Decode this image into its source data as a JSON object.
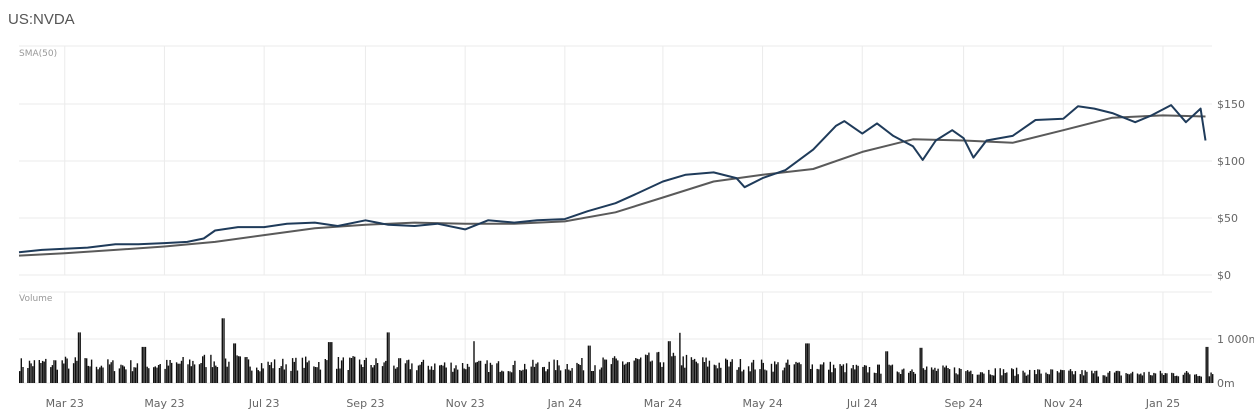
{
  "header": {
    "ticker": "US:NVDA"
  },
  "chart_data": [
    {
      "type": "line",
      "panel": "price",
      "indicator_label": "SMA(50)",
      "ylim": [
        0,
        150
      ],
      "yticks": [
        0,
        50,
        100,
        150
      ],
      "ytick_labels": [
        "$0",
        "$50",
        "$100",
        "$150"
      ],
      "y_axis_position": "right",
      "grid": true,
      "x_range": [
        "2023-02-01",
        "2025-01-31"
      ],
      "series": [
        {
          "color": "#1f3b5a",
          "points": [
            [
              "2023-02-01",
              20
            ],
            [
              "2023-02-15",
              22
            ],
            [
              "2023-03-01",
              23
            ],
            [
              "2023-03-15",
              24
            ],
            [
              "2023-04-01",
              27
            ],
            [
              "2023-04-15",
              27
            ],
            [
              "2023-05-01",
              28
            ],
            [
              "2023-05-15",
              29
            ],
            [
              "2023-05-25",
              32
            ],
            [
              "2023-06-01",
              39
            ],
            [
              "2023-06-15",
              42
            ],
            [
              "2023-07-01",
              42
            ],
            [
              "2023-07-15",
              45
            ],
            [
              "2023-08-01",
              46
            ],
            [
              "2023-08-15",
              43
            ],
            [
              "2023-09-01",
              48
            ],
            [
              "2023-09-15",
              44
            ],
            [
              "2023-10-01",
              43
            ],
            [
              "2023-10-15",
              45
            ],
            [
              "2023-11-01",
              40
            ],
            [
              "2023-11-15",
              48
            ],
            [
              "2023-12-01",
              46
            ],
            [
              "2023-12-15",
              48
            ],
            [
              "2024-01-01",
              49
            ],
            [
              "2024-01-15",
              56
            ],
            [
              "2024-02-01",
              63
            ],
            [
              "2024-02-15",
              72
            ],
            [
              "2024-03-01",
              82
            ],
            [
              "2024-03-15",
              88
            ],
            [
              "2024-04-01",
              90
            ],
            [
              "2024-04-15",
              85
            ],
            [
              "2024-04-20",
              77
            ],
            [
              "2024-05-01",
              85
            ],
            [
              "2024-05-15",
              92
            ],
            [
              "2024-06-01",
              110
            ],
            [
              "2024-06-15",
              131
            ],
            [
              "2024-06-20",
              135
            ],
            [
              "2024-07-01",
              124
            ],
            [
              "2024-07-10",
              133
            ],
            [
              "2024-07-20",
              122
            ],
            [
              "2024-08-01",
              113
            ],
            [
              "2024-08-07",
              101
            ],
            [
              "2024-08-15",
              118
            ],
            [
              "2024-08-25",
              127
            ],
            [
              "2024-09-01",
              120
            ],
            [
              "2024-09-07",
              103
            ],
            [
              "2024-09-15",
              118
            ],
            [
              "2024-10-01",
              122
            ],
            [
              "2024-10-15",
              136
            ],
            [
              "2024-11-01",
              137
            ],
            [
              "2024-11-10",
              148
            ],
            [
              "2024-11-20",
              146
            ],
            [
              "2024-12-01",
              142
            ],
            [
              "2024-12-15",
              134
            ],
            [
              "2024-12-25",
              140
            ],
            [
              "2025-01-06",
              149
            ],
            [
              "2025-01-15",
              134
            ],
            [
              "2025-01-24",
              146
            ],
            [
              "2025-01-27",
              118
            ]
          ]
        },
        {
          "color": "#5a5a5a",
          "points": [
            [
              "2023-02-01",
              17
            ],
            [
              "2023-03-01",
              19
            ],
            [
              "2023-04-01",
              22
            ],
            [
              "2023-05-01",
              25
            ],
            [
              "2023-06-01",
              29
            ],
            [
              "2023-07-01",
              35
            ],
            [
              "2023-08-01",
              41
            ],
            [
              "2023-09-01",
              44
            ],
            [
              "2023-10-01",
              46
            ],
            [
              "2023-11-01",
              45
            ],
            [
              "2023-12-01",
              45
            ],
            [
              "2024-01-01",
              47
            ],
            [
              "2024-02-01",
              55
            ],
            [
              "2024-03-01",
              68
            ],
            [
              "2024-04-01",
              82
            ],
            [
              "2024-05-01",
              88
            ],
            [
              "2024-06-01",
              93
            ],
            [
              "2024-07-01",
              108
            ],
            [
              "2024-08-01",
              119
            ],
            [
              "2024-09-01",
              118
            ],
            [
              "2024-10-01",
              116
            ],
            [
              "2024-11-01",
              127
            ],
            [
              "2024-12-01",
              138
            ],
            [
              "2025-01-01",
              140
            ],
            [
              "2025-01-27",
              139
            ]
          ]
        }
      ]
    },
    {
      "type": "bar",
      "panel": "volume",
      "indicator_label": "Volume",
      "unit": "m",
      "ylim": [
        0,
        1000
      ],
      "yticks": [
        0,
        1000
      ],
      "ytick_labels": [
        "0m",
        "1 000m"
      ],
      "y_axis_position": "right",
      "volume_profile": [
        [
          "2023-02-01",
          450
        ],
        [
          "2023-03-01",
          480
        ],
        [
          "2023-04-01",
          420
        ],
        [
          "2023-05-01",
          420
        ],
        [
          "2023-06-01",
          560
        ],
        [
          "2023-07-01",
          430
        ],
        [
          "2023-08-01",
          480
        ],
        [
          "2023-09-01",
          470
        ],
        [
          "2023-10-01",
          420
        ],
        [
          "2023-11-01",
          410
        ],
        [
          "2023-12-01",
          400
        ],
        [
          "2024-01-01",
          420
        ],
        [
          "2024-02-01",
          480
        ],
        [
          "2024-03-01",
          560
        ],
        [
          "2024-04-01",
          460
        ],
        [
          "2024-05-01",
          420
        ],
        [
          "2024-06-01",
          420
        ],
        [
          "2024-07-01",
          330
        ],
        [
          "2024-08-01",
          330
        ],
        [
          "2024-09-01",
          300
        ],
        [
          "2024-10-01",
          270
        ],
        [
          "2024-11-01",
          250
        ],
        [
          "2024-12-01",
          230
        ],
        [
          "2025-01-01",
          220
        ],
        [
          "2025-01-31",
          230
        ]
      ],
      "volume_spikes": [
        [
          "2023-03-10",
          1150
        ],
        [
          "2023-04-18",
          820
        ],
        [
          "2023-06-05",
          1470
        ],
        [
          "2023-06-12",
          900
        ],
        [
          "2023-08-10",
          930
        ],
        [
          "2023-09-15",
          1150
        ],
        [
          "2023-11-05",
          950
        ],
        [
          "2024-01-15",
          850
        ],
        [
          "2024-03-10",
          1140
        ],
        [
          "2024-03-04",
          950
        ],
        [
          "2024-05-28",
          900
        ],
        [
          "2024-07-15",
          720
        ],
        [
          "2024-08-05",
          800
        ],
        [
          "2025-01-27",
          820
        ]
      ]
    }
  ],
  "x_axis": {
    "ticks": [
      {
        "label": "Mar 23",
        "date": "2023-03-01"
      },
      {
        "label": "May 23",
        "date": "2023-05-01"
      },
      {
        "label": "Jul 23",
        "date": "2023-07-01"
      },
      {
        "label": "Sep 23",
        "date": "2023-09-01"
      },
      {
        "label": "Nov 23",
        "date": "2023-11-01"
      },
      {
        "label": "Jan 24",
        "date": "2024-01-01"
      },
      {
        "label": "Mar 24",
        "date": "2024-03-01"
      },
      {
        "label": "May 24",
        "date": "2024-05-01"
      },
      {
        "label": "Jul 24",
        "date": "2024-07-01"
      },
      {
        "label": "Sep 24",
        "date": "2024-09-01"
      },
      {
        "label": "Nov 24",
        "date": "2024-11-01"
      },
      {
        "label": "Jan 25",
        "date": "2025-01-01"
      }
    ]
  }
}
